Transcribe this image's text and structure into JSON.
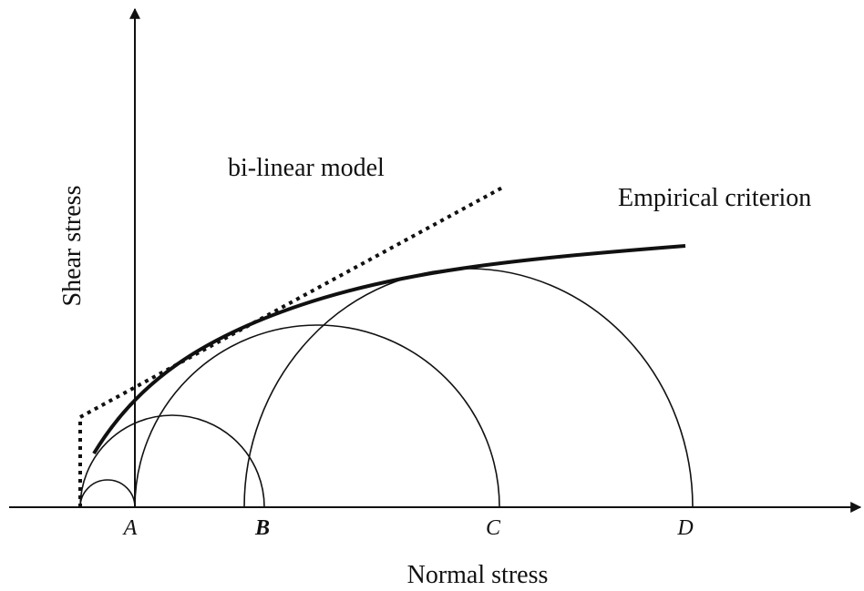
{
  "axes": {
    "y_label": "Shear stress",
    "x_label": "Normal stress"
  },
  "annotations": {
    "bilinear": "bi-linear model",
    "empirical": "Empirical criterion"
  },
  "points": [
    "A",
    "B",
    "C",
    "D"
  ]
}
